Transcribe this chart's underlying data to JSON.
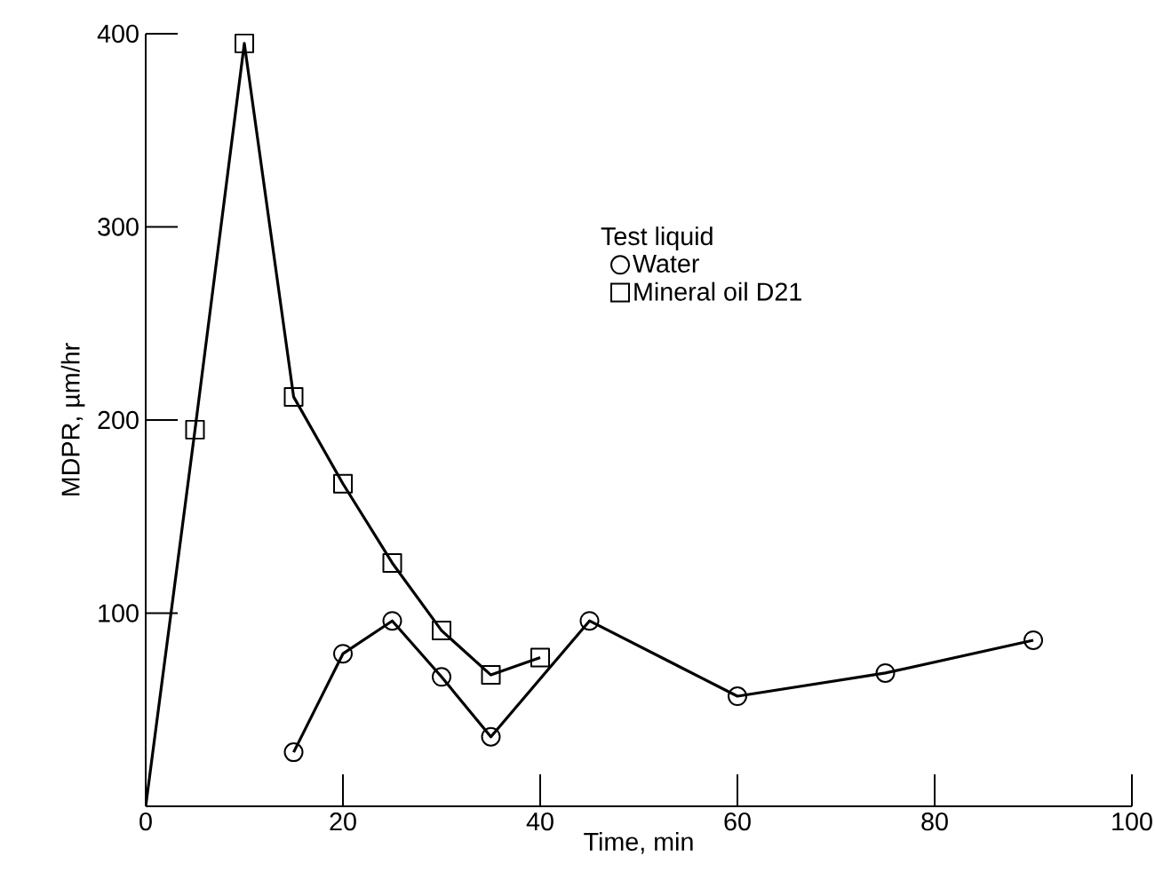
{
  "chart_data": {
    "type": "line",
    "xlabel": "Time, min",
    "ylabel": "MDPR, µm/hr",
    "legend_title": "Test liquid",
    "legend": "top right",
    "grid": false,
    "xlim": [
      0,
      100
    ],
    "ylim": [
      0,
      400
    ],
    "xticks": [
      0,
      20,
      40,
      60,
      80,
      100
    ],
    "yticks": [
      100,
      200,
      300,
      400
    ],
    "series": [
      {
        "name": "Water",
        "color": "#000000",
        "marker": "circle",
        "x": [
          15,
          20,
          25,
          30,
          35,
          45,
          60,
          75,
          90
        ],
        "values": [
          28,
          79,
          96,
          67,
          36,
          96,
          57,
          69,
          86
        ]
      },
      {
        "name": "Mineral oil D21",
        "color": "#000000",
        "marker": "square",
        "x": [
          0,
          5,
          10,
          15,
          20,
          25,
          30,
          35,
          40
        ],
        "values": [
          0,
          195,
          395,
          212,
          167,
          126,
          91,
          68,
          77
        ]
      }
    ]
  }
}
